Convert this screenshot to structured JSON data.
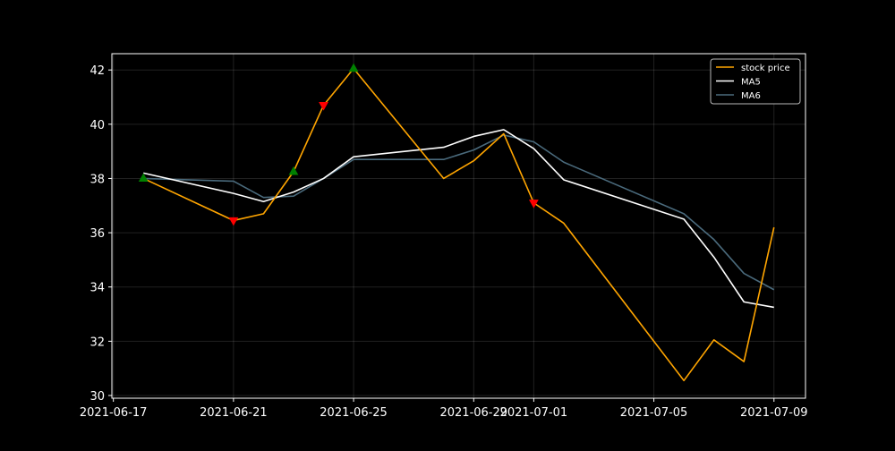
{
  "chart_data": {
    "type": "line",
    "title": "",
    "xlabel": "",
    "ylabel": "",
    "x_is_date": true,
    "xlim": [
      "2021-06-16T22:48",
      "2021-07-10T01:12"
    ],
    "ylim": [
      29.9,
      42.6
    ],
    "x_ticks": [
      "2021-06-17",
      "2021-06-21",
      "2021-06-25",
      "2021-06-29",
      "2021-07-01",
      "2021-07-05",
      "2021-07-09"
    ],
    "y_ticks": [
      30,
      32,
      34,
      36,
      38,
      40,
      42
    ],
    "y_tick_labels": [
      "30",
      "32",
      "34",
      "36",
      "38",
      "40",
      "42"
    ],
    "grid": true,
    "legend_position": "top-right",
    "series": [
      {
        "name": "stock price",
        "color": "#FFA500",
        "points": [
          {
            "x": "2021-06-18",
            "y": 38.0
          },
          {
            "x": "2021-06-21",
            "y": 36.45
          },
          {
            "x": "2021-06-22",
            "y": 36.7
          },
          {
            "x": "2021-06-23",
            "y": 38.25
          },
          {
            "x": "2021-06-24",
            "y": 40.7
          },
          {
            "x": "2021-06-25",
            "y": 42.05
          },
          {
            "x": "2021-06-28",
            "y": 38.0
          },
          {
            "x": "2021-06-29",
            "y": 38.65
          },
          {
            "x": "2021-06-30",
            "y": 39.65
          },
          {
            "x": "2021-07-01",
            "y": 37.1
          },
          {
            "x": "2021-07-02",
            "y": 36.35
          },
          {
            "x": "2021-07-06",
            "y": 30.55
          },
          {
            "x": "2021-07-07",
            "y": 32.05
          },
          {
            "x": "2021-07-08",
            "y": 31.25
          },
          {
            "x": "2021-07-09",
            "y": 36.2
          }
        ]
      },
      {
        "name": "MA5",
        "color": "#FFFFFF",
        "points": [
          {
            "x": "2021-06-18",
            "y": 38.2
          },
          {
            "x": "2021-06-21",
            "y": 37.45
          },
          {
            "x": "2021-06-22",
            "y": 37.15
          },
          {
            "x": "2021-06-23",
            "y": 37.5
          },
          {
            "x": "2021-06-24",
            "y": 38.0
          },
          {
            "x": "2021-06-25",
            "y": 38.8
          },
          {
            "x": "2021-06-28",
            "y": 39.15
          },
          {
            "x": "2021-06-29",
            "y": 39.55
          },
          {
            "x": "2021-06-30",
            "y": 39.8
          },
          {
            "x": "2021-07-01",
            "y": 39.1
          },
          {
            "x": "2021-07-02",
            "y": 37.95
          },
          {
            "x": "2021-07-06",
            "y": 36.5
          },
          {
            "x": "2021-07-07",
            "y": 35.1
          },
          {
            "x": "2021-07-08",
            "y": 33.45
          },
          {
            "x": "2021-07-09",
            "y": 33.25
          }
        ]
      },
      {
        "name": "MA6",
        "color": "#4A6A7C",
        "points": [
          {
            "x": "2021-06-18",
            "y": 38.0
          },
          {
            "x": "2021-06-21",
            "y": 37.9
          },
          {
            "x": "2021-06-22",
            "y": 37.3
          },
          {
            "x": "2021-06-23",
            "y": 37.35
          },
          {
            "x": "2021-06-24",
            "y": 38.0
          },
          {
            "x": "2021-06-25",
            "y": 38.7
          },
          {
            "x": "2021-06-28",
            "y": 38.7
          },
          {
            "x": "2021-06-29",
            "y": 39.05
          },
          {
            "x": "2021-06-30",
            "y": 39.6
          },
          {
            "x": "2021-07-01",
            "y": 39.35
          },
          {
            "x": "2021-07-02",
            "y": 38.6
          },
          {
            "x": "2021-07-06",
            "y": 36.7
          },
          {
            "x": "2021-07-07",
            "y": 35.75
          },
          {
            "x": "2021-07-08",
            "y": 34.5
          },
          {
            "x": "2021-07-09",
            "y": 33.9
          }
        ]
      }
    ],
    "buy_markers": {
      "color": "#008000",
      "points": [
        {
          "x": "2021-06-18",
          "y": 38.0
        },
        {
          "x": "2021-06-23",
          "y": 38.25
        },
        {
          "x": "2021-06-25",
          "y": 42.05
        }
      ]
    },
    "sell_markers": {
      "color": "#FF0000",
      "points": [
        {
          "x": "2021-06-21",
          "y": 36.45
        },
        {
          "x": "2021-06-24",
          "y": 40.7
        },
        {
          "x": "2021-07-01",
          "y": 37.1
        }
      ]
    }
  }
}
